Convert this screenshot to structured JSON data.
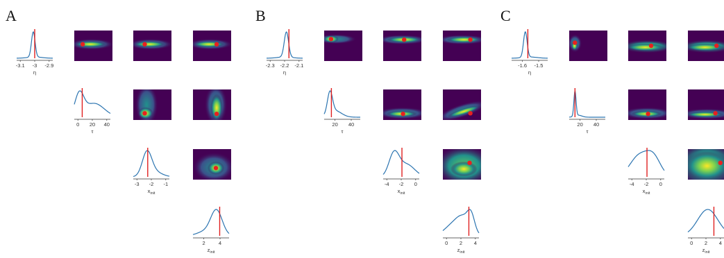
{
  "panels": [
    {
      "label": "A",
      "diagonal": [
        {
          "param": "eta",
          "xlabel": "η",
          "ticks": [
            "-3.1",
            "-3",
            "-2.9"
          ],
          "curve": "peak_center",
          "true_value": 0.5
        },
        {
          "param": "tau",
          "xlabel": "τ",
          "ticks": [
            "0",
            "20",
            "40"
          ],
          "curve": "broad_decline",
          "true_value": 0.22
        },
        {
          "param": "x_init",
          "xlabel": "x",
          "xlabel_sub": "init",
          "ticks": [
            "-3",
            "-2",
            "-1"
          ],
          "curve": "mid_peak",
          "true_value": 0.4
        },
        {
          "param": "z_init",
          "xlabel": "z",
          "xlabel_sub": "init",
          "ticks": [
            "2",
            "4"
          ],
          "curve": "right_peak",
          "true_value": 0.74
        }
      ],
      "density_panels": [
        {
          "row": 0,
          "col": 1,
          "pattern": "hband_center",
          "dot": [
            0.22,
            0.45
          ]
        },
        {
          "row": 0,
          "col": 2,
          "pattern": "hband_center",
          "dot": [
            0.3,
            0.45
          ]
        },
        {
          "row": 0,
          "col": 3,
          "pattern": "hband_center",
          "dot": [
            0.62,
            0.45
          ]
        },
        {
          "row": 1,
          "col": 2,
          "pattern": "vband_lowleft",
          "dot": [
            0.3,
            0.78
          ]
        },
        {
          "row": 1,
          "col": 3,
          "pattern": "vband_right",
          "dot": [
            0.62,
            0.8
          ]
        },
        {
          "row": 2,
          "col": 3,
          "pattern": "blob_right",
          "dot": [
            0.6,
            0.62
          ]
        }
      ]
    },
    {
      "label": "B",
      "diagonal": [
        {
          "param": "eta",
          "xlabel": "η",
          "ticks": [
            "-2.3",
            "-2.2",
            "-2.1"
          ],
          "curve": "peak_right",
          "true_value": 0.62
        },
        {
          "param": "tau",
          "xlabel": "τ",
          "ticks": [
            "20",
            "40"
          ],
          "curve": "skew_left",
          "true_value": 0.2
        },
        {
          "param": "x_init",
          "xlabel": "x",
          "xlabel_sub": "init",
          "ticks": [
            "-4",
            "-2",
            "0"
          ],
          "curve": "left_peak_decline",
          "true_value": 0.52
        },
        {
          "param": "z_init",
          "xlabel": "z",
          "xlabel_sub": "init",
          "ticks": [
            "0",
            "2",
            "4"
          ],
          "curve": "rising",
          "true_value": 0.72
        }
      ],
      "density_panels": [
        {
          "row": 0,
          "col": 1,
          "pattern": "hband_top_left",
          "dot": [
            0.18,
            0.28
          ]
        },
        {
          "row": 0,
          "col": 2,
          "pattern": "hband_top",
          "dot": [
            0.55,
            0.3
          ]
        },
        {
          "row": 0,
          "col": 3,
          "pattern": "hband_top",
          "dot": [
            0.72,
            0.3
          ]
        },
        {
          "row": 1,
          "col": 2,
          "pattern": "low_band",
          "dot": [
            0.52,
            0.8
          ]
        },
        {
          "row": 1,
          "col": 3,
          "pattern": "diag_low",
          "dot": [
            0.72,
            0.78
          ]
        },
        {
          "row": 2,
          "col": 3,
          "pattern": "wide_blob",
          "dot": [
            0.7,
            0.45
          ]
        }
      ]
    },
    {
      "label": "C",
      "diagonal": [
        {
          "param": "eta",
          "xlabel": "η",
          "ticks": [
            "-1.6",
            "-1.5"
          ],
          "curve": "peak_left",
          "true_value": 0.45
        },
        {
          "param": "tau",
          "xlabel": "τ",
          "ticks": [
            "20",
            "40"
          ],
          "curve": "sharp_left",
          "true_value": 0.16
        },
        {
          "param": "x_init",
          "xlabel": "x",
          "xlabel_sub": "init",
          "ticks": [
            "-4",
            "-2",
            "0"
          ],
          "curve": "flat_broad",
          "true_value": 0.52
        },
        {
          "param": "z_init",
          "xlabel": "z",
          "xlabel_sub": "init",
          "ticks": [
            "0",
            "2",
            "4"
          ],
          "curve": "hump",
          "true_value": 0.72
        }
      ],
      "density_panels": [
        {
          "row": 0,
          "col": 1,
          "pattern": "left_spot",
          "dot": [
            0.15,
            0.4
          ]
        },
        {
          "row": 0,
          "col": 2,
          "pattern": "hband_mid",
          "dot": [
            0.6,
            0.5
          ]
        },
        {
          "row": 0,
          "col": 3,
          "pattern": "hband_mid",
          "dot": [
            0.75,
            0.5
          ]
        },
        {
          "row": 1,
          "col": 2,
          "pattern": "low_band",
          "dot": [
            0.52,
            0.8
          ]
        },
        {
          "row": 1,
          "col": 3,
          "pattern": "low_band_right",
          "dot": [
            0.72,
            0.78
          ]
        },
        {
          "row": 2,
          "col": 3,
          "pattern": "bright_field",
          "dot": [
            0.85,
            0.45
          ]
        }
      ]
    }
  ],
  "colors": {
    "curve": "#2b74b0",
    "true_line": "#e02020",
    "dot": "#e82020",
    "viridis_low": "#440154",
    "viridis_mid": "#21918c",
    "viridis_high": "#fde725"
  }
}
